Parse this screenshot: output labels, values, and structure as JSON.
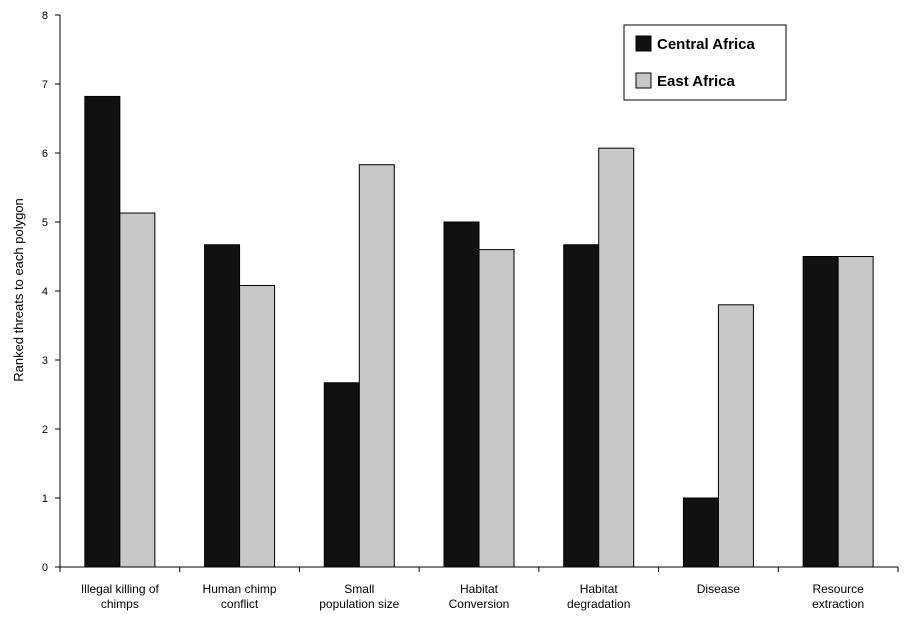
{
  "chart_data": {
    "type": "bar",
    "categories": [
      [
        "Illegal killing of",
        "chimps"
      ],
      [
        "Human chimp",
        "conflict"
      ],
      [
        "Small",
        "population size"
      ],
      [
        "Habitat",
        "Conversion"
      ],
      [
        "Habitat",
        "degradation"
      ],
      [
        "Disease"
      ],
      [
        "Resource",
        "extraction"
      ]
    ],
    "series": [
      {
        "name": "Central Africa",
        "color": "#111111",
        "values": [
          6.82,
          4.67,
          2.67,
          5.0,
          4.67,
          1.0,
          4.5
        ]
      },
      {
        "name": "East Africa",
        "color": "#c8c8c8",
        "values": [
          5.13,
          4.08,
          5.83,
          4.6,
          6.07,
          3.8,
          4.5
        ]
      }
    ],
    "ylabel": "Ranked threats to each polygon",
    "xlabel": "",
    "ylim": [
      0,
      8
    ],
    "yticks": [
      0,
      1,
      2,
      3,
      4,
      5,
      6,
      7,
      8
    ],
    "grid": false,
    "legend_position": "top-right"
  }
}
